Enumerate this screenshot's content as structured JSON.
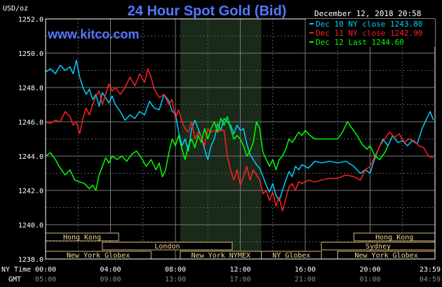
{
  "chart_data": {
    "type": "line",
    "title": "24 Hour Spot Gold (Bid)",
    "watermark": "www.kitco.com",
    "date_stamp": "December 12, 2018 20:58",
    "ylabel": "USD/oz",
    "ylim": [
      1238.0,
      1252.0
    ],
    "yticks": [
      "1252.0",
      "1250.0",
      "1248.0",
      "1246.0",
      "1244.0",
      "1242.0",
      "1240.0",
      "1238.0"
    ],
    "ny_time_label": "NY Time",
    "gmt_label": "GMT",
    "x_ticks_ny": [
      "00:00",
      "04:00",
      "08:00",
      "12:00",
      "16:00",
      "20:00",
      "23:59"
    ],
    "x_ticks_gmt": [
      "05:00",
      "09:00",
      "13:00",
      "17:00",
      "21:00",
      "01:00",
      "04:59"
    ],
    "xlim_hours": [
      0,
      24
    ],
    "grid": true,
    "legend_position": "top-right",
    "sessions": [
      {
        "label": "Hong Kong",
        "start": 0,
        "end": 4.5,
        "row": 0
      },
      {
        "label": "London",
        "start": 3.5,
        "end": 11.5,
        "row": 1
      },
      {
        "label": "New York Globex",
        "start": 0,
        "end": 6.5,
        "row": 2
      },
      {
        "label": "New York NYMEX",
        "start": 8.3,
        "end": 13.3,
        "row": 2
      },
      {
        "label": "NY Globex",
        "start": 13.3,
        "end": 17.0,
        "row": 2
      },
      {
        "label": "Hong Kong",
        "start": 19.0,
        "end": 24,
        "row": 0
      },
      {
        "label": "Sydney",
        "start": 17.0,
        "end": 24,
        "row": 1
      },
      {
        "label": "New York Globex",
        "start": 18.0,
        "end": 24,
        "row": 2
      }
    ],
    "nymex_shade": [
      8.3,
      13.3
    ],
    "series": [
      {
        "name": "Dec 10 NY close 1243.80",
        "color": "#00ccff",
        "points": [
          [
            0,
            1248.9
          ],
          [
            0.3,
            1249.1
          ],
          [
            0.6,
            1248.8
          ],
          [
            0.9,
            1249.3
          ],
          [
            1.2,
            1249.0
          ],
          [
            1.5,
            1249.2
          ],
          [
            1.7,
            1248.8
          ],
          [
            1.9,
            1249.6
          ],
          [
            2.1,
            1248.6
          ],
          [
            2.3,
            1248.0
          ],
          [
            2.5,
            1247.6
          ],
          [
            2.7,
            1247.9
          ],
          [
            2.9,
            1247.3
          ],
          [
            3.1,
            1247.6
          ],
          [
            3.3,
            1246.9
          ],
          [
            3.5,
            1247.7
          ],
          [
            3.7,
            1247.4
          ],
          [
            3.9,
            1247.1
          ],
          [
            4.1,
            1247.5
          ],
          [
            4.3,
            1247.0
          ],
          [
            4.6,
            1246.6
          ],
          [
            4.9,
            1246.1
          ],
          [
            5.2,
            1246.4
          ],
          [
            5.5,
            1246.2
          ],
          [
            5.8,
            1246.6
          ],
          [
            6.1,
            1246.4
          ],
          [
            6.4,
            1247.2
          ],
          [
            6.7,
            1246.8
          ],
          [
            7.0,
            1246.7
          ],
          [
            7.3,
            1247.6
          ],
          [
            7.6,
            1247.2
          ],
          [
            7.8,
            1246.6
          ],
          [
            8.0,
            1246.5
          ],
          [
            8.2,
            1245.4
          ],
          [
            8.4,
            1244.6
          ],
          [
            8.6,
            1245.0
          ],
          [
            8.8,
            1244.3
          ],
          [
            9.0,
            1245.6
          ],
          [
            9.2,
            1246.1
          ],
          [
            9.4,
            1245.6
          ],
          [
            9.6,
            1245.1
          ],
          [
            9.8,
            1244.4
          ],
          [
            10.0,
            1243.8
          ],
          [
            10.2,
            1244.6
          ],
          [
            10.4,
            1245.0
          ],
          [
            10.6,
            1245.9
          ],
          [
            10.8,
            1245.5
          ],
          [
            11.0,
            1246.2
          ],
          [
            11.2,
            1246.0
          ],
          [
            11.4,
            1245.8
          ],
          [
            11.6,
            1245.3
          ],
          [
            11.8,
            1245.8
          ],
          [
            12.0,
            1245.5
          ],
          [
            12.2,
            1245.6
          ],
          [
            12.4,
            1244.7
          ],
          [
            12.6,
            1244.1
          ],
          [
            12.8,
            1243.8
          ],
          [
            13.0,
            1243.5
          ],
          [
            13.2,
            1243.3
          ],
          [
            13.4,
            1242.8
          ],
          [
            13.6,
            1242.3
          ],
          [
            13.8,
            1241.9
          ],
          [
            14.0,
            1242.4
          ],
          [
            14.2,
            1241.7
          ],
          [
            14.4,
            1241.4
          ],
          [
            14.6,
            1242.0
          ],
          [
            14.8,
            1242.6
          ],
          [
            15.0,
            1243.1
          ],
          [
            15.2,
            1242.8
          ],
          [
            15.4,
            1243.4
          ],
          [
            15.6,
            1243.2
          ],
          [
            15.8,
            1243.5
          ],
          [
            16.2,
            1243.3
          ],
          [
            16.6,
            1243.7
          ],
          [
            17.0,
            1243.6
          ],
          [
            17.5,
            1243.7
          ],
          [
            18.0,
            1243.6
          ],
          [
            18.5,
            1243.7
          ],
          [
            19.0,
            1243.4
          ],
          [
            19.4,
            1243.0
          ],
          [
            19.7,
            1243.2
          ],
          [
            20.0,
            1243.0
          ],
          [
            20.2,
            1243.6
          ],
          [
            20.5,
            1244.4
          ],
          [
            20.8,
            1245.0
          ],
          [
            21.1,
            1244.6
          ],
          [
            21.4,
            1245.2
          ],
          [
            21.7,
            1244.8
          ],
          [
            22.0,
            1244.9
          ],
          [
            22.3,
            1244.6
          ],
          [
            22.6,
            1244.9
          ],
          [
            22.9,
            1244.7
          ],
          [
            23.2,
            1245.6
          ],
          [
            23.5,
            1246.2
          ],
          [
            23.7,
            1246.6
          ],
          [
            23.9,
            1246.1
          ]
        ]
      },
      {
        "name": "Dec 11 NY close 1242.90",
        "color": "#ff2020",
        "points": [
          [
            0,
            1246.0
          ],
          [
            0.3,
            1245.9
          ],
          [
            0.6,
            1246.1
          ],
          [
            0.9,
            1246.0
          ],
          [
            1.2,
            1246.6
          ],
          [
            1.5,
            1246.3
          ],
          [
            1.7,
            1245.8
          ],
          [
            1.9,
            1246.0
          ],
          [
            2.1,
            1245.3
          ],
          [
            2.3,
            1246.2
          ],
          [
            2.5,
            1246.8
          ],
          [
            2.7,
            1246.4
          ],
          [
            2.9,
            1247.0
          ],
          [
            3.1,
            1247.5
          ],
          [
            3.3,
            1247.8
          ],
          [
            3.5,
            1247.0
          ],
          [
            3.7,
            1247.6
          ],
          [
            3.9,
            1248.2
          ],
          [
            4.1,
            1247.8
          ],
          [
            4.3,
            1248.0
          ],
          [
            4.6,
            1247.6
          ],
          [
            4.9,
            1248.0
          ],
          [
            5.2,
            1248.6
          ],
          [
            5.5,
            1248.1
          ],
          [
            5.8,
            1248.8
          ],
          [
            6.1,
            1248.3
          ],
          [
            6.3,
            1249.1
          ],
          [
            6.5,
            1248.6
          ],
          [
            6.7,
            1247.9
          ],
          [
            7.0,
            1247.4
          ],
          [
            7.3,
            1247.6
          ],
          [
            7.6,
            1247.0
          ],
          [
            7.8,
            1247.3
          ],
          [
            8.0,
            1246.2
          ],
          [
            8.2,
            1246.7
          ],
          [
            8.4,
            1246.0
          ],
          [
            8.6,
            1245.6
          ],
          [
            8.8,
            1245.4
          ],
          [
            9.0,
            1246.0
          ],
          [
            9.2,
            1245.0
          ],
          [
            9.4,
            1245.4
          ],
          [
            9.6,
            1245.1
          ],
          [
            9.8,
            1244.6
          ],
          [
            10.0,
            1245.6
          ],
          [
            10.2,
            1245.4
          ],
          [
            10.4,
            1245.5
          ],
          [
            10.6,
            1245.4
          ],
          [
            10.8,
            1245.5
          ],
          [
            11.0,
            1245.5
          ],
          [
            11.2,
            1244.0
          ],
          [
            11.4,
            1243.2
          ],
          [
            11.6,
            1242.6
          ],
          [
            11.8,
            1243.2
          ],
          [
            12.0,
            1242.3
          ],
          [
            12.2,
            1242.8
          ],
          [
            12.4,
            1243.4
          ],
          [
            12.6,
            1242.6
          ],
          [
            12.8,
            1243.2
          ],
          [
            13.0,
            1242.9
          ],
          [
            13.2,
            1242.6
          ],
          [
            13.4,
            1241.8
          ],
          [
            13.6,
            1242.0
          ],
          [
            13.8,
            1241.4
          ],
          [
            14.0,
            1241.9
          ],
          [
            14.2,
            1241.1
          ],
          [
            14.4,
            1241.6
          ],
          [
            14.6,
            1240.8
          ],
          [
            14.8,
            1241.5
          ],
          [
            15.0,
            1242.2
          ],
          [
            15.2,
            1242.4
          ],
          [
            15.4,
            1242.0
          ],
          [
            15.6,
            1242.5
          ],
          [
            15.8,
            1242.4
          ],
          [
            16.2,
            1242.6
          ],
          [
            16.6,
            1242.5
          ],
          [
            17.0,
            1242.6
          ],
          [
            17.5,
            1242.7
          ],
          [
            18.0,
            1242.7
          ],
          [
            18.5,
            1242.9
          ],
          [
            19.0,
            1242.8
          ],
          [
            19.4,
            1242.6
          ],
          [
            19.7,
            1243.2
          ],
          [
            20.0,
            1243.4
          ],
          [
            20.3,
            1244.0
          ],
          [
            20.6,
            1244.6
          ],
          [
            20.9,
            1245.0
          ],
          [
            21.2,
            1245.4
          ],
          [
            21.5,
            1245.1
          ],
          [
            21.8,
            1245.3
          ],
          [
            22.1,
            1244.8
          ],
          [
            22.4,
            1245.0
          ],
          [
            22.7,
            1244.9
          ],
          [
            23.0,
            1244.6
          ],
          [
            23.3,
            1244.5
          ],
          [
            23.6,
            1244.0
          ],
          [
            23.9,
            1243.9
          ]
        ]
      },
      {
        "name": "Dec 12 Last 1244.60",
        "color": "#00ff00",
        "points": [
          [
            0,
            1244.0
          ],
          [
            0.3,
            1244.2
          ],
          [
            0.6,
            1243.8
          ],
          [
            0.9,
            1243.3
          ],
          [
            1.2,
            1242.9
          ],
          [
            1.5,
            1243.2
          ],
          [
            1.8,
            1242.6
          ],
          [
            2.1,
            1242.5
          ],
          [
            2.4,
            1242.4
          ],
          [
            2.7,
            1242.1
          ],
          [
            2.9,
            1242.3
          ],
          [
            3.1,
            1242.0
          ],
          [
            3.3,
            1242.9
          ],
          [
            3.5,
            1243.4
          ],
          [
            3.7,
            1243.9
          ],
          [
            3.9,
            1243.6
          ],
          [
            4.1,
            1244.0
          ],
          [
            4.4,
            1243.8
          ],
          [
            4.7,
            1244.0
          ],
          [
            5.0,
            1243.7
          ],
          [
            5.3,
            1244.1
          ],
          [
            5.6,
            1244.3
          ],
          [
            5.9,
            1243.9
          ],
          [
            6.2,
            1243.4
          ],
          [
            6.5,
            1243.8
          ],
          [
            6.8,
            1243.2
          ],
          [
            7.0,
            1243.6
          ],
          [
            7.2,
            1242.8
          ],
          [
            7.4,
            1243.2
          ],
          [
            7.6,
            1244.2
          ],
          [
            7.8,
            1245.0
          ],
          [
            8.0,
            1244.6
          ],
          [
            8.2,
            1245.2
          ],
          [
            8.4,
            1244.4
          ],
          [
            8.6,
            1243.8
          ],
          [
            8.8,
            1244.6
          ],
          [
            9.0,
            1245.0
          ],
          [
            9.2,
            1244.5
          ],
          [
            9.4,
            1245.2
          ],
          [
            9.6,
            1244.8
          ],
          [
            9.8,
            1245.6
          ],
          [
            10.0,
            1245.0
          ],
          [
            10.2,
            1245.6
          ],
          [
            10.4,
            1246.0
          ],
          [
            10.6,
            1245.4
          ],
          [
            10.8,
            1246.2
          ],
          [
            11.0,
            1245.8
          ],
          [
            11.2,
            1246.3
          ],
          [
            11.4,
            1245.6
          ],
          [
            11.6,
            1245.0
          ],
          [
            11.8,
            1245.2
          ],
          [
            12.0,
            1245.0
          ],
          [
            12.2,
            1244.6
          ],
          [
            12.4,
            1244.0
          ],
          [
            12.6,
            1244.3
          ],
          [
            12.8,
            1244.8
          ],
          [
            13.0,
            1246.0
          ],
          [
            13.2,
            1245.6
          ],
          [
            13.4,
            1244.2
          ],
          [
            13.6,
            1243.8
          ],
          [
            13.8,
            1243.4
          ],
          [
            14.0,
            1243.8
          ],
          [
            14.2,
            1243.2
          ],
          [
            14.4,
            1243.8
          ],
          [
            14.6,
            1244.0
          ],
          [
            14.8,
            1244.4
          ],
          [
            15.0,
            1245.0
          ],
          [
            15.2,
            1244.8
          ],
          [
            15.4,
            1245.1
          ],
          [
            15.6,
            1245.4
          ],
          [
            15.8,
            1245.2
          ],
          [
            16.0,
            1245.5
          ],
          [
            16.3,
            1245.2
          ],
          [
            16.6,
            1245.0
          ],
          [
            17.0,
            1245.0
          ],
          [
            17.5,
            1245.0
          ],
          [
            18.0,
            1245.0
          ],
          [
            18.3,
            1245.4
          ],
          [
            18.6,
            1246.0
          ],
          [
            18.9,
            1245.6
          ],
          [
            19.2,
            1245.2
          ],
          [
            19.5,
            1244.7
          ],
          [
            19.8,
            1244.4
          ],
          [
            20.0,
            1244.6
          ],
          [
            20.3,
            1244.0
          ],
          [
            20.6,
            1243.8
          ],
          [
            20.9,
            1244.2
          ],
          [
            21.1,
            1244.6
          ]
        ]
      }
    ]
  }
}
